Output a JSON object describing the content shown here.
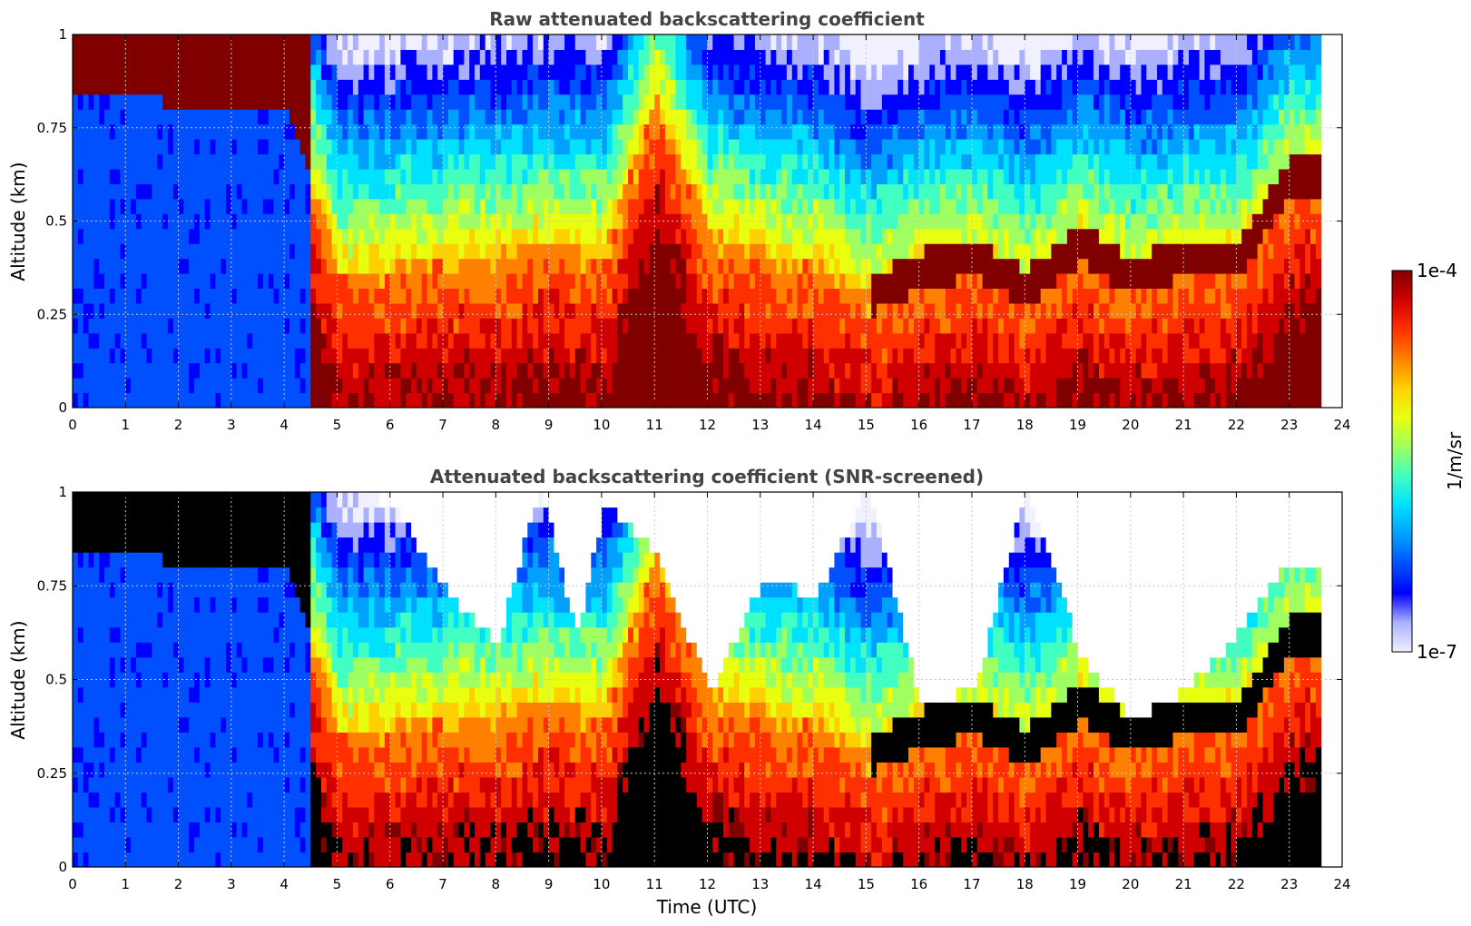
{
  "colors": {
    "jet": [
      "#f0f0ff",
      "#aab0ff",
      "#0000ff",
      "#0050ff",
      "#00a0ff",
      "#00e0ff",
      "#40ffc0",
      "#a0ff60",
      "#e8ff10",
      "#ffd000",
      "#ff8000",
      "#ff3000",
      "#d00000",
      "#800000"
    ],
    "screened": "#000000"
  },
  "chart_data": [
    {
      "type": "heatmap",
      "title": "Raw attenuated backscattering coefficient",
      "xlabel": "",
      "ylabel": "Altitude (km)",
      "xlim": [
        0,
        24
      ],
      "ylim": [
        0,
        1
      ],
      "xticks": [
        "0",
        "1",
        "2",
        "3",
        "4",
        "5",
        "6",
        "7",
        "8",
        "9",
        "10",
        "11",
        "12",
        "13",
        "14",
        "15",
        "16",
        "17",
        "18",
        "19",
        "20",
        "21",
        "22",
        "23",
        "24"
      ],
      "yticks": [
        "0",
        "0.25",
        "0.5",
        "0.75",
        "1"
      ],
      "grid": true,
      "data_end_time": 23.6,
      "boundary_layer_top_km": [
        [
          0,
          0.84
        ],
        [
          1,
          0.82
        ],
        [
          2,
          0.79
        ],
        [
          3,
          0.79
        ],
        [
          4,
          0.8
        ],
        [
          5,
          0.35
        ],
        [
          6,
          0.36
        ],
        [
          7,
          0.38
        ],
        [
          8,
          0.4
        ],
        [
          9,
          0.42
        ],
        [
          10,
          0.4
        ],
        [
          11,
          0.82
        ],
        [
          12,
          0.45
        ],
        [
          13,
          0.4
        ],
        [
          14,
          0.38
        ],
        [
          15,
          0.28
        ],
        [
          16,
          0.35
        ],
        [
          17,
          0.38
        ],
        [
          18,
          0.3
        ],
        [
          19,
          0.42
        ],
        [
          20,
          0.33
        ],
        [
          21,
          0.38
        ],
        [
          22,
          0.38
        ],
        [
          23,
          0.6
        ]
      ]
    },
    {
      "type": "heatmap",
      "title": "Attenuated backscattering coefficient (SNR-screened)",
      "xlabel": "Time (UTC)",
      "ylabel": "Altitude (km)",
      "xlim": [
        0,
        24
      ],
      "ylim": [
        0,
        1
      ],
      "xticks": [
        "0",
        "1",
        "2",
        "3",
        "4",
        "5",
        "6",
        "7",
        "8",
        "9",
        "10",
        "11",
        "12",
        "13",
        "14",
        "15",
        "16",
        "17",
        "18",
        "19",
        "20",
        "21",
        "22",
        "23",
        "24"
      ],
      "yticks": [
        "0",
        "0.25",
        "0.5",
        "0.75",
        "1"
      ],
      "grid": true,
      "data_end_time": 23.6,
      "noise_ceiling_km": [
        [
          4.6,
          1.0
        ],
        [
          6,
          0.95
        ],
        [
          7,
          0.72
        ],
        [
          8,
          0.58
        ],
        [
          8.8,
          1.0
        ],
        [
          9.5,
          0.6
        ],
        [
          10,
          0.95
        ],
        [
          11,
          0.82
        ],
        [
          12,
          0.45
        ],
        [
          13,
          0.75
        ],
        [
          14,
          0.7
        ],
        [
          15,
          1.0
        ],
        [
          16,
          0.42
        ],
        [
          17,
          0.45
        ],
        [
          18,
          1.0
        ],
        [
          19,
          0.55
        ],
        [
          20,
          0.37
        ],
        [
          21,
          0.45
        ],
        [
          22,
          0.6
        ],
        [
          23,
          0.8
        ]
      ]
    }
  ],
  "colorbar": {
    "max_label": "1e-4",
    "min_label": "1e-7",
    "units": "1/m/sr"
  }
}
